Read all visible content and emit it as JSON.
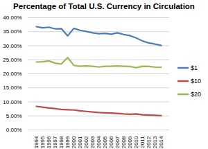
{
  "chart_data": {
    "type": "line",
    "title": "Percentage of Total U.S. Currency in Circulation",
    "categories": [
      "1994",
      "1995",
      "1996",
      "1997",
      "1998",
      "1999",
      "2000",
      "2001",
      "2002",
      "2003",
      "2004",
      "2005",
      "2006",
      "2007",
      "2008",
      "2009",
      "2010",
      "2011",
      "2012",
      "2013",
      "2014"
    ],
    "series": [
      {
        "name": "$1",
        "color": "#4a7ebb",
        "values": [
          36.8,
          36.4,
          36.6,
          36.0,
          36.1,
          33.5,
          36.2,
          35.5,
          35.1,
          34.6,
          34.3,
          34.4,
          34.1,
          34.6,
          34.0,
          33.6,
          32.8,
          31.7,
          31.0,
          30.6,
          30.1
        ]
      },
      {
        "name": "$10",
        "color": "#be4b48",
        "values": [
          8.4,
          8.1,
          7.8,
          7.6,
          7.3,
          7.2,
          7.1,
          6.8,
          6.6,
          6.4,
          6.2,
          6.1,
          6.0,
          5.9,
          5.7,
          5.6,
          5.7,
          5.4,
          5.3,
          5.2,
          5.1
        ]
      },
      {
        "name": "$20",
        "color": "#98b954",
        "values": [
          24.2,
          24.3,
          24.6,
          23.8,
          23.5,
          25.8,
          23.0,
          22.7,
          22.8,
          22.7,
          22.4,
          22.7,
          22.7,
          22.8,
          22.7,
          22.6,
          22.2,
          22.7,
          22.6,
          22.4,
          22.3
        ]
      }
    ],
    "ylim": [
      0,
      40
    ],
    "yticks": [
      {
        "value": 0,
        "label": "0.00%"
      },
      {
        "value": 5,
        "label": "5.00%"
      },
      {
        "value": 10,
        "label": "10.00%"
      },
      {
        "value": 15,
        "label": "15.00%"
      },
      {
        "value": 20,
        "label": "20.00%"
      },
      {
        "value": 25,
        "label": "25.00%"
      },
      {
        "value": 30,
        "label": "30.00%"
      },
      {
        "value": 35,
        "label": "35.00%"
      },
      {
        "value": 40,
        "label": "40.00%"
      }
    ],
    "grid": true,
    "legend": "right"
  }
}
